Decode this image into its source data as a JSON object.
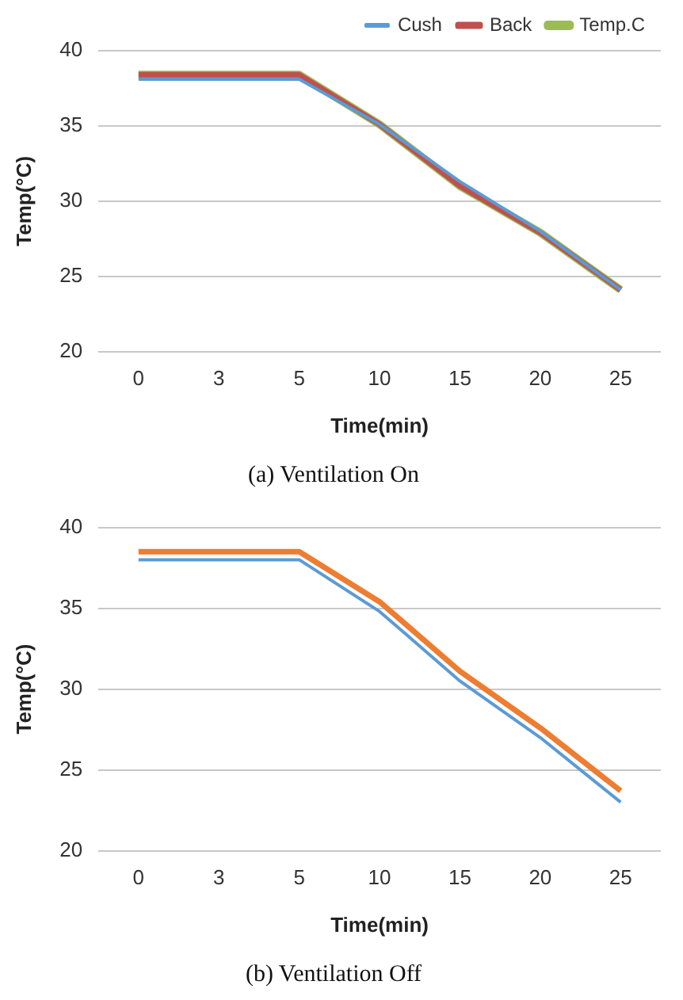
{
  "chart_data": [
    {
      "type": "line",
      "title": "(a) Ventilation On",
      "xlabel": "Time(min)",
      "ylabel": "Temp(°C)",
      "categories": [
        "0",
        "3",
        "5",
        "10",
        "15",
        "20",
        "25"
      ],
      "series": [
        {
          "name": "Cush",
          "color": "#5b9bd5",
          "values": [
            38.1,
            38.1,
            38.1,
            35.1,
            31.3,
            28.0,
            24.1
          ]
        },
        {
          "name": "Back",
          "color": "#c0504d",
          "values": [
            38.4,
            38.4,
            38.4,
            35.1,
            31.0,
            27.9,
            24.1
          ]
        },
        {
          "name": "Temp.C",
          "color": "#9bbb59",
          "values": [
            38.4,
            38.4,
            38.4,
            35.1,
            31.0,
            27.9,
            24.1
          ]
        }
      ],
      "ylim": [
        20,
        40
      ],
      "yticks": [
        20,
        25,
        30,
        35,
        40
      ],
      "grid": "y",
      "legend": "top right",
      "marker": "none",
      "line_style": "solid"
    },
    {
      "type": "line",
      "title": "(b) Ventilation Off",
      "xlabel": "Time(min)",
      "ylabel": "Temp(°C)",
      "categories": [
        "0",
        "3",
        "5",
        "10",
        "15",
        "20",
        "25"
      ],
      "series": [
        {
          "color": "#5b9bd5",
          "values": [
            38.0,
            38.0,
            38.0,
            34.8,
            30.5,
            27.0,
            23.0
          ]
        },
        {
          "color": "#ed7d31",
          "values": [
            38.5,
            38.5,
            38.5,
            35.4,
            31.1,
            27.6,
            23.7
          ]
        }
      ],
      "ylim": [
        20,
        40
      ],
      "yticks": [
        20,
        25,
        30,
        35,
        40
      ],
      "grid": "y",
      "marker": "none",
      "line_style": "solid"
    }
  ]
}
